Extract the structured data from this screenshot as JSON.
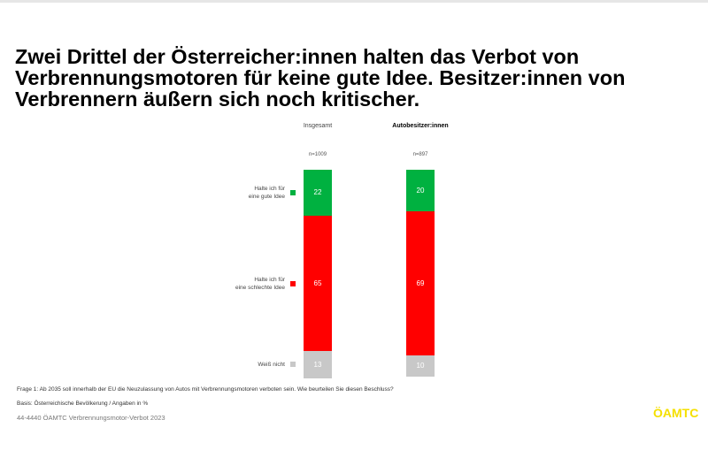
{
  "title": "Zwei Drittel der Österreicher:innen halten das Verbot von Verbrennungsmotoren für keine gute Idee. Besitzer:innen von Verbrennern äußern sich noch kritischer.",
  "chart_data": {
    "type": "bar",
    "stacked": true,
    "percent_stacked": true,
    "categories": [
      "Insgesamt",
      "Autobesitzer:innen"
    ],
    "sample_sizes": [
      "n=1009",
      "n=897"
    ],
    "series": [
      {
        "name": "Halte ich für eine gute Idee",
        "color": "#00b140",
        "values": [
          22,
          20
        ]
      },
      {
        "name": "Halte ich für eine schlechte Idee",
        "color": "#ff0000",
        "values": [
          65,
          69
        ]
      },
      {
        "name": "Weiß nicht",
        "color": "#c8c8c8",
        "values": [
          13,
          10
        ]
      }
    ],
    "legend_placement": "left"
  },
  "footer": {
    "question": "Frage 1: Ab 2035 soll innerhalb der EU die Neuzulassung von Autos mit Verbrennungsmotoren verboten sein. Wie beurteilen Sie diesen Beschluss?",
    "basis": "Basis: Österreichische Bevölkerung / Angaben in %",
    "source": "44-4440 ÖAMTC Verbrennungsmotor-Verbot 2023",
    "logo": "ÖAMTC"
  }
}
